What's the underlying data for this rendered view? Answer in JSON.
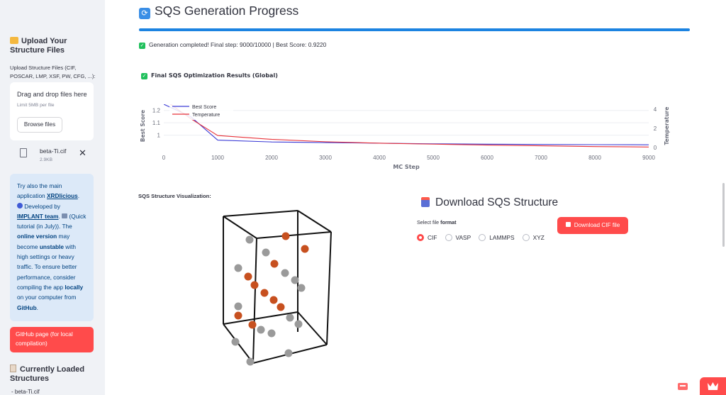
{
  "sidebar": {
    "upload_heading": "Upload Your Structure Files",
    "upload_label": "Upload Structure Files (CIF, POSCAR, LMP, XSF, PW, CFG, ...):",
    "dropzone_title": "Drag and drop files here",
    "dropzone_limit": "Limit 5MB per file",
    "browse_label": "Browse files",
    "file": {
      "name": "beta-Ti.cif",
      "size": "2.9KB"
    },
    "info": {
      "p1": "Try also the main application ",
      "xrd_link": "XRDlicious",
      "p2": ". ",
      "p3": " Developed by ",
      "team_link": "IMPLANT team",
      "p4": ". ",
      "p5": " (Quick tutorial (in July)). The ",
      "online": "online version",
      "p6": " may become ",
      "unstable": "unstable",
      "p7": " with high settings or heavy traffic. To ensure better performance, consider compiling the app ",
      "locally": "locally",
      "p8": " on your computer from ",
      "github": "GitHub",
      "p9": "."
    },
    "github_button": "GitHub page (for local compilation)",
    "loaded_heading": "Currently Loaded Structures",
    "loaded_item": "- beta-Ti.cif"
  },
  "main": {
    "title": "SQS Generation Progress",
    "progress": 1.0,
    "status": "Generation completed! Final step: 9000/10000 | Best Score: 0.9220",
    "chart_title": "Final SQS Optimization Results (Global)",
    "viz_label": "SQS Structure Visualization:",
    "download": {
      "title": "Download SQS Structure",
      "format_label_pre": "Select file ",
      "format_label_bold": "format",
      "formats": [
        "CIF",
        "VASP",
        "LAMMPS",
        "XYZ"
      ],
      "selected": "CIF",
      "button": "Download CIF file"
    }
  },
  "chart_data": {
    "type": "line",
    "title": "Final SQS Optimization Results (Global)",
    "xlabel": "MC Step",
    "ylabel": "Best Score",
    "y2label": "Temperature",
    "xlim": [
      0,
      9000
    ],
    "xticks": [
      "0",
      "1000",
      "2000",
      "3000",
      "4000",
      "5000",
      "6000",
      "7000",
      "8000",
      "9000"
    ],
    "ylim": [
      0.9,
      1.25
    ],
    "yticks": [
      "1",
      "1.1",
      "1.2"
    ],
    "y2lim": [
      0,
      4.5
    ],
    "y2ticks": [
      "0",
      "2",
      "4"
    ],
    "legend": "top-left",
    "series": [
      {
        "name": "Best Score",
        "color": "#3b3bd6",
        "axis": "y",
        "x": [
          0,
          500,
          1000,
          2000,
          3000,
          4000,
          5000,
          6000,
          7000,
          8000,
          9000
        ],
        "y": [
          1.25,
          1.15,
          0.96,
          0.945,
          0.94,
          0.935,
          0.93,
          0.927,
          0.925,
          0.923,
          0.922
        ]
      },
      {
        "name": "Temperature",
        "color": "#e8333a",
        "axis": "y2",
        "x": [
          0,
          500,
          1000,
          2000,
          3000,
          4000,
          5000,
          6000,
          7000,
          8000,
          9000
        ],
        "y": [
          5.0,
          3.0,
          1.25,
          0.85,
          0.6,
          0.45,
          0.35,
          0.25,
          0.18,
          0.1,
          0.05
        ]
      }
    ]
  }
}
